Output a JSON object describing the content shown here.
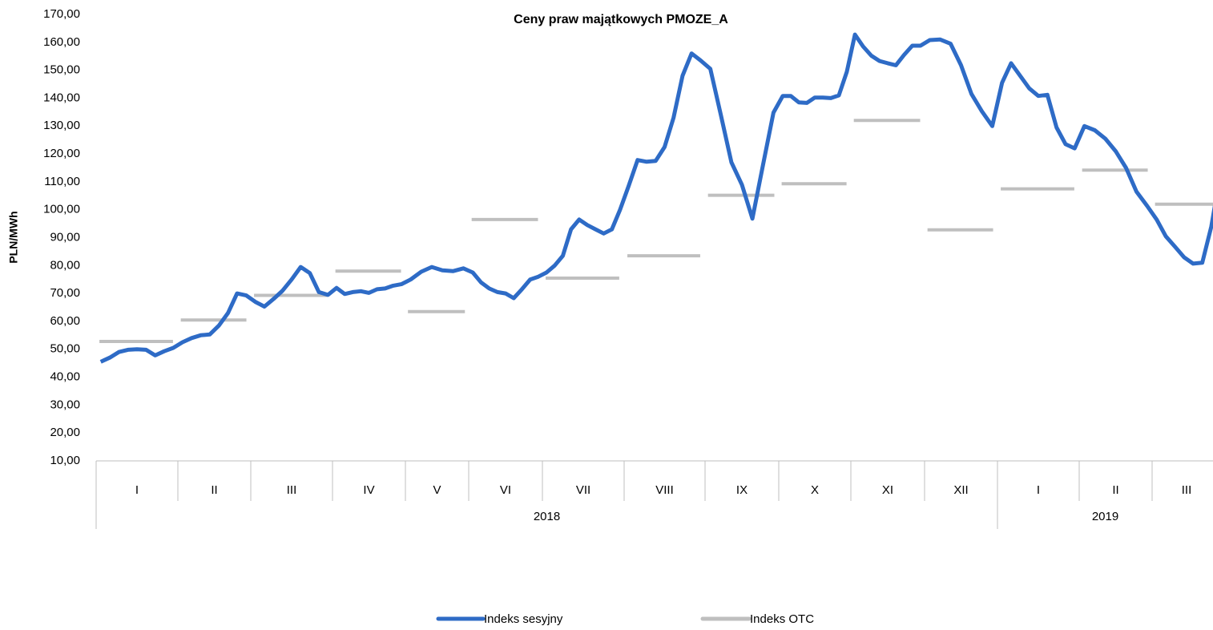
{
  "chart_data": {
    "type": "line",
    "title": "Ceny praw majątkowych PMOZE_A",
    "y_label": "PLN/MWh",
    "categories": [
      "I",
      "II",
      "III",
      "IV",
      "V",
      "VI",
      "VII",
      "VIII",
      "IX",
      "X",
      "XI",
      "XII",
      "I",
      "II",
      "III"
    ],
    "groups": [
      {
        "label": "2018",
        "span": 12
      },
      {
        "label": "2019",
        "span": 3
      }
    ],
    "ylim": [
      10,
      170
    ],
    "yticks": [
      {
        "value": 10,
        "label": "10,00"
      },
      {
        "value": 20,
        "label": "20,00"
      },
      {
        "value": 30,
        "label": "30,00"
      },
      {
        "value": 40,
        "label": "40,00"
      },
      {
        "value": 50,
        "label": "50,00"
      },
      {
        "value": 60,
        "label": "60,00"
      },
      {
        "value": 70,
        "label": "70,00"
      },
      {
        "value": 80,
        "label": "80,00"
      },
      {
        "value": 90,
        "label": "90,00"
      },
      {
        "value": 100,
        "label": "100,00"
      },
      {
        "value": 110,
        "label": "110,00"
      },
      {
        "value": 120,
        "label": "120,00"
      },
      {
        "value": 130,
        "label": "130,00"
      },
      {
        "value": 140,
        "label": "140,00"
      },
      {
        "value": 150,
        "label": "150,00"
      },
      {
        "value": 160,
        "label": "160,00"
      },
      {
        "value": 170,
        "label": "170,00"
      }
    ],
    "grid": false,
    "series": [
      {
        "name": "Indeks sesyjny",
        "color": "#2e6bc6",
        "values": [
          [
            45.5,
            47,
            49,
            49.8,
            50,
            49.8,
            47.8,
            49.3,
            50.5
          ],
          [
            52.5,
            54,
            55,
            55.3,
            58.5,
            63,
            70,
            69.3
          ],
          [
            67,
            65.3,
            68,
            71,
            75,
            79.5,
            77.3,
            70.5,
            69.5
          ],
          [
            72,
            69.8,
            70.5,
            70.8,
            70.2,
            71.5,
            71.8,
            72.8,
            73.3
          ],
          [
            75,
            77.8,
            79.5,
            78.3,
            78,
            79
          ],
          [
            77.5,
            74,
            71.8,
            70.5,
            70,
            68.3,
            71.5,
            75,
            76
          ],
          [
            77.5,
            80,
            83.5,
            93,
            96.5,
            94.5,
            93,
            91.5,
            93,
            100
          ],
          [
            108.5,
            117.8,
            117.2,
            117.5,
            122.5,
            133,
            148,
            156,
            153.5
          ],
          [
            150.5,
            134,
            117,
            109,
            96.8,
            116,
            134.8
          ],
          [
            140.8,
            140.8,
            138.5,
            138.3,
            140.2,
            140.2,
            140,
            141,
            149.5
          ],
          [
            162.8,
            158.5,
            155.2,
            153.3,
            152.5,
            151.8,
            155.5,
            158.8,
            158.8
          ],
          [
            160.8,
            161,
            159.5,
            151.8,
            141.5,
            135.3,
            130
          ],
          [
            145.5,
            152.5,
            148,
            143.5,
            140.8,
            141.2,
            129.5,
            123.5,
            122
          ],
          [
            130,
            128.5,
            125.5,
            121,
            115,
            106.5,
            101.5
          ],
          [
            96.5,
            90.5,
            86.8,
            83,
            80.7,
            81,
            94,
            113
          ]
        ]
      },
      {
        "name": "Indeks OTC",
        "color": "#bfbfbf",
        "values": [
          52.8,
          60.5,
          69.3,
          78,
          63.5,
          96.5,
          75.5,
          83.5,
          105.2,
          109.3,
          132,
          92.8,
          107.5,
          114.2,
          102
        ]
      }
    ]
  }
}
